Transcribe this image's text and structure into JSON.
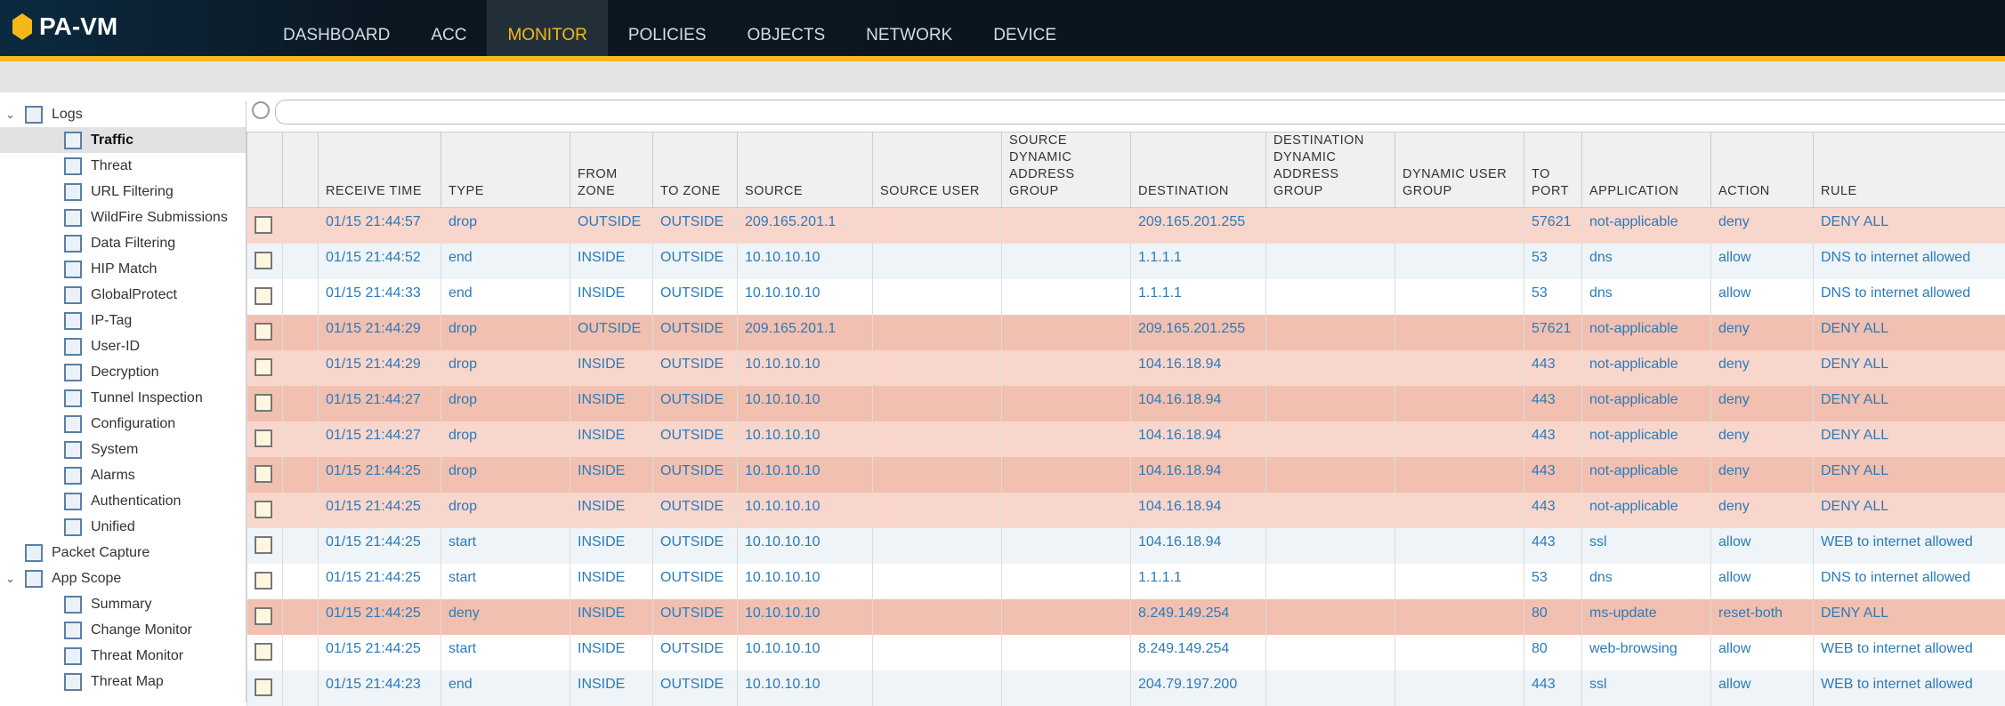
{
  "header": {
    "logo": "PA-VM",
    "nav": [
      {
        "label": "DASHBOARD"
      },
      {
        "label": "ACC"
      },
      {
        "label": "MONITOR",
        "active": true
      },
      {
        "label": "POLICIES"
      },
      {
        "label": "OBJECTS"
      },
      {
        "label": "NETWORK"
      },
      {
        "label": "DEVICE"
      }
    ]
  },
  "sidebar": {
    "items": [
      {
        "label": "Logs",
        "level": 0,
        "expanded": true
      },
      {
        "label": "Traffic",
        "level": 1,
        "selected": true
      },
      {
        "label": "Threat",
        "level": 1
      },
      {
        "label": "URL Filtering",
        "level": 1
      },
      {
        "label": "WildFire Submissions",
        "level": 1
      },
      {
        "label": "Data Filtering",
        "level": 1
      },
      {
        "label": "HIP Match",
        "level": 1
      },
      {
        "label": "GlobalProtect",
        "level": 1
      },
      {
        "label": "IP-Tag",
        "level": 1
      },
      {
        "label": "User-ID",
        "level": 1
      },
      {
        "label": "Decryption",
        "level": 1
      },
      {
        "label": "Tunnel Inspection",
        "level": 1
      },
      {
        "label": "Configuration",
        "level": 1
      },
      {
        "label": "System",
        "level": 1
      },
      {
        "label": "Alarms",
        "level": 1
      },
      {
        "label": "Authentication",
        "level": 1
      },
      {
        "label": "Unified",
        "level": 1
      },
      {
        "label": "Packet Capture",
        "level": 0
      },
      {
        "label": "App Scope",
        "level": 0,
        "expanded": true
      },
      {
        "label": "Summary",
        "level": 1
      },
      {
        "label": "Change Monitor",
        "level": 1
      },
      {
        "label": "Threat Monitor",
        "level": 1
      },
      {
        "label": "Threat Map",
        "level": 1
      }
    ]
  },
  "table": {
    "columns": [
      "RECEIVE TIME",
      "TYPE",
      "FROM ZONE",
      "TO ZONE",
      "SOURCE",
      "SOURCE USER",
      "SOURCE DYNAMIC ADDRESS GROUP",
      "DESTINATION",
      "DESTINATION DYNAMIC ADDRESS GROUP",
      "DYNAMIC USER GROUP",
      "TO PORT",
      "APPLICATION",
      "ACTION",
      "RULE"
    ],
    "rows": [
      {
        "highlight": true,
        "cells": [
          "01/15 21:44:57",
          "drop",
          "OUTSIDE",
          "OUTSIDE",
          "209.165.201.1",
          null,
          null,
          "209.165.201.255",
          null,
          null,
          57621,
          "not-applicable",
          "deny",
          "DENY ALL"
        ]
      },
      {
        "cells": [
          "01/15 21:44:52",
          "end",
          "INSIDE",
          "OUTSIDE",
          "10.10.10.10",
          null,
          null,
          "1.1.1.1",
          null,
          null,
          53,
          "dns",
          "allow",
          "DNS to internet allowed"
        ]
      },
      {
        "cells": [
          "01/15 21:44:33",
          "end",
          "INSIDE",
          "OUTSIDE",
          "10.10.10.10",
          null,
          null,
          "1.1.1.1",
          null,
          null,
          53,
          "dns",
          "allow",
          "DNS to internet allowed"
        ]
      },
      {
        "highlight": true,
        "cells": [
          "01/15 21:44:29",
          "drop",
          "OUTSIDE",
          "OUTSIDE",
          "209.165.201.1",
          null,
          null,
          "209.165.201.255",
          null,
          null,
          57621,
          "not-applicable",
          "deny",
          "DENY ALL"
        ]
      },
      {
        "highlight": true,
        "cells": [
          "01/15 21:44:29",
          "drop",
          "INSIDE",
          "OUTSIDE",
          "10.10.10.10",
          null,
          null,
          "104.16.18.94",
          null,
          null,
          443,
          "not-applicable",
          "deny",
          "DENY ALL"
        ]
      },
      {
        "highlight": true,
        "cells": [
          "01/15 21:44:27",
          "drop",
          "INSIDE",
          "OUTSIDE",
          "10.10.10.10",
          null,
          null,
          "104.16.18.94",
          null,
          null,
          443,
          "not-applicable",
          "deny",
          "DENY ALL"
        ]
      },
      {
        "highlight": true,
        "cells": [
          "01/15 21:44:27",
          "drop",
          "INSIDE",
          "OUTSIDE",
          "10.10.10.10",
          null,
          null,
          "104.16.18.94",
          null,
          null,
          443,
          "not-applicable",
          "deny",
          "DENY ALL"
        ]
      },
      {
        "highlight": true,
        "cells": [
          "01/15 21:44:25",
          "drop",
          "INSIDE",
          "OUTSIDE",
          "10.10.10.10",
          null,
          null,
          "104.16.18.94",
          null,
          null,
          443,
          "not-applicable",
          "deny",
          "DENY ALL"
        ]
      },
      {
        "highlight": true,
        "cells": [
          "01/15 21:44:25",
          "drop",
          "INSIDE",
          "OUTSIDE",
          "10.10.10.10",
          null,
          null,
          "104.16.18.94",
          null,
          null,
          443,
          "not-applicable",
          "deny",
          "DENY ALL"
        ]
      },
      {
        "cells": [
          "01/15 21:44:25",
          "start",
          "INSIDE",
          "OUTSIDE",
          "10.10.10.10",
          null,
          null,
          "104.16.18.94",
          null,
          null,
          443,
          "ssl",
          "allow",
          "WEB to internet allowed"
        ]
      },
      {
        "cells": [
          "01/15 21:44:25",
          "start",
          "INSIDE",
          "OUTSIDE",
          "10.10.10.10",
          null,
          null,
          "1.1.1.1",
          null,
          null,
          53,
          "dns",
          "allow",
          "DNS to internet allowed"
        ]
      },
      {
        "highlight": true,
        "cells": [
          "01/15 21:44:25",
          "deny",
          "INSIDE",
          "OUTSIDE",
          "10.10.10.10",
          null,
          null,
          "8.249.149.254",
          null,
          null,
          80,
          "ms-update",
          "reset-both",
          "DENY ALL"
        ]
      },
      {
        "cells": [
          "01/15 21:44:25",
          "start",
          "INSIDE",
          "OUTSIDE",
          "10.10.10.10",
          null,
          null,
          "8.249.149.254",
          null,
          null,
          80,
          "web-browsing",
          "allow",
          "WEB to internet allowed"
        ]
      },
      {
        "cells": [
          "01/15 21:44:23",
          "end",
          "INSIDE",
          "OUTSIDE",
          "10.10.10.10",
          null,
          null,
          "204.79.197.200",
          null,
          null,
          443,
          "ssl",
          "allow",
          "WEB to internet allowed"
        ]
      }
    ]
  }
}
